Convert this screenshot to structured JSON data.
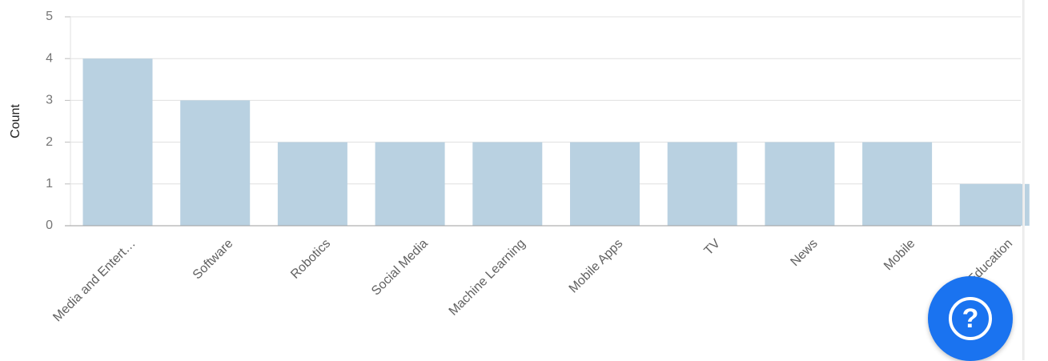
{
  "chart_data": {
    "type": "bar",
    "categories": [
      "Media and Entert…",
      "Software",
      "Robotics",
      "Social Media",
      "Machine Learning",
      "Mobile Apps",
      "TV",
      "News",
      "Mobile",
      "Education"
    ],
    "values": [
      4,
      3,
      2,
      2,
      2,
      2,
      2,
      2,
      2,
      1
    ],
    "ylabel": "Count",
    "ylim": [
      0,
      5
    ],
    "yticks": [
      0,
      1,
      2,
      3,
      4,
      5
    ],
    "grid": true,
    "bar_color": "#b9d1e1"
  },
  "help_button": {
    "glyph": "?",
    "icon": "question-circle-icon",
    "color": "#1a73f0"
  }
}
